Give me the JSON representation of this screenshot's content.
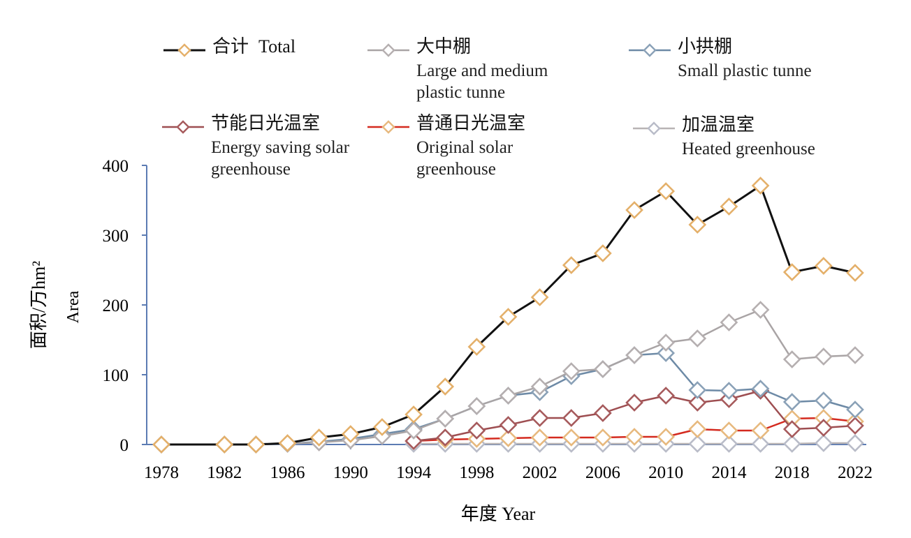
{
  "chart_data": {
    "type": "line",
    "x": [
      1978,
      1982,
      1984,
      1986,
      1988,
      1990,
      1992,
      1994,
      1996,
      1998,
      2000,
      2002,
      2004,
      2006,
      2008,
      2010,
      2012,
      2014,
      2016,
      2018,
      2020,
      2022
    ],
    "x_ticks": [
      "1978",
      "1982",
      "1986",
      "1990",
      "1994",
      "1998",
      "2002",
      "2006",
      "2010",
      "2014",
      "2018",
      "2022"
    ],
    "y_ticks": [
      "0",
      "100",
      "200",
      "300",
      "400"
    ],
    "ylim": [
      0,
      400
    ],
    "xlim": [
      1978,
      2022
    ],
    "ylabel_zh": "面积/万hm²",
    "ylabel_en": "Area",
    "xlabel": "年度 Year",
    "legend_position": "top",
    "series": [
      {
        "id": "total",
        "name_zh": "合计",
        "name_en": "Total",
        "color": "#111111",
        "marker_color": "#e4b06a",
        "marker_from": 0,
        "values": [
          0,
          0,
          0,
          2,
          10,
          15,
          25,
          43,
          83,
          140,
          183,
          211,
          257,
          274,
          336,
          363,
          315,
          341,
          371,
          247,
          256,
          246
        ]
      },
      {
        "id": "large_medium",
        "name_zh": "大中棚",
        "name_en": "Large and medium plastic tunne",
        "color": "#a9a4a5",
        "marker_color": "#b5afb0",
        "marker_from": 0,
        "values": [
          0,
          0,
          0,
          1,
          3,
          6,
          12,
          20,
          37,
          55,
          70,
          83,
          105,
          108,
          128,
          146,
          152,
          175,
          193,
          122,
          126,
          128
        ]
      },
      {
        "id": "small_tunnel",
        "name_zh": "小拱棚",
        "name_en": "Small plastic tunne",
        "color": "#6d8aa6",
        "marker_color": "#8aa1b7",
        "marker_from": 0,
        "values": [
          0,
          0,
          0,
          1,
          4,
          8,
          15,
          22,
          37,
          55,
          70,
          75,
          98,
          108,
          128,
          131,
          78,
          77,
          80,
          61,
          63,
          50
        ]
      },
      {
        "id": "energy_saving",
        "name_zh": "节能日光温室",
        "name_en": "Energy saving solar greenhouse",
        "color": "#9e4e51",
        "marker_color": "#a65a5c",
        "marker_from": 7,
        "values": [
          0,
          0,
          0,
          0,
          0,
          0,
          0,
          5,
          10,
          20,
          28,
          38,
          38,
          45,
          60,
          70,
          60,
          65,
          77,
          22,
          24,
          27
        ]
      },
      {
        "id": "original_solar",
        "name_zh": "普通日光温室",
        "name_en": "Original solar greenhouse",
        "color": "#d42a1f",
        "marker_color": "#e7b97e",
        "marker_from": 7,
        "values": [
          0,
          0,
          0,
          0,
          0,
          0,
          2,
          5,
          7,
          8,
          9,
          10,
          10,
          10,
          11,
          11,
          22,
          20,
          20,
          37,
          38,
          33
        ]
      },
      {
        "id": "heated",
        "name_zh": "加温温室",
        "name_en": "Heated greenhouse",
        "color": "#b8b3b4",
        "marker_color": "#b9bcc8",
        "marker_from": 7,
        "values": [
          0,
          0,
          0,
          0,
          0,
          0,
          0,
          1,
          1,
          1,
          1,
          1,
          1,
          1,
          1,
          1,
          1,
          1,
          1,
          1,
          2,
          2
        ]
      }
    ]
  }
}
